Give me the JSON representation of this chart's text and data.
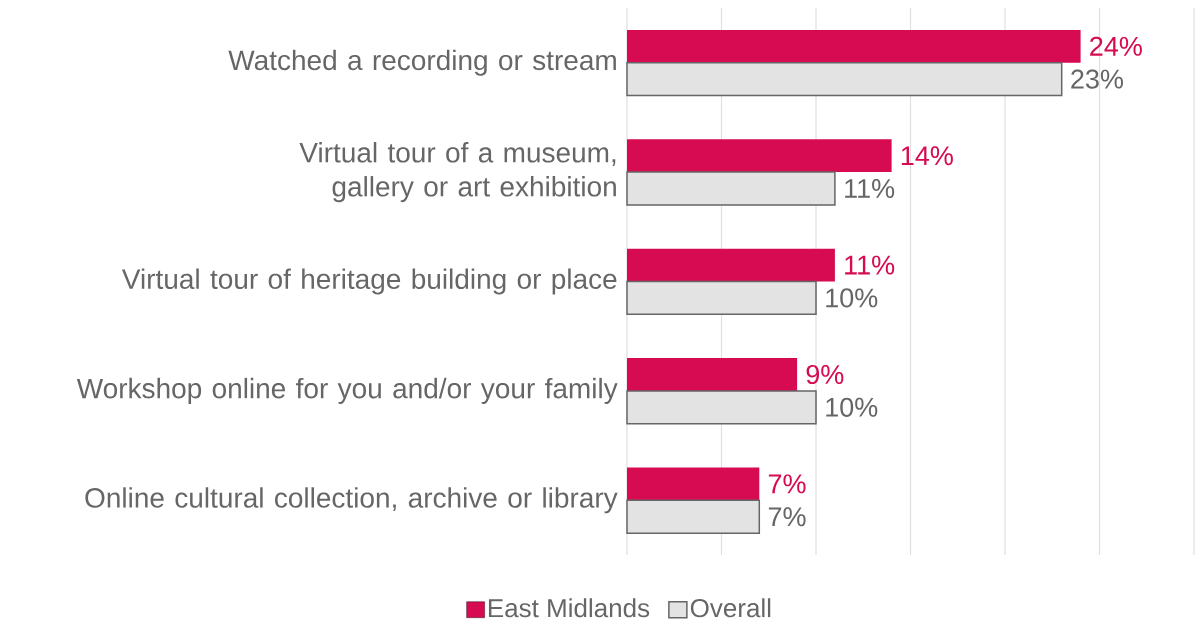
{
  "chart_data": {
    "type": "bar",
    "orientation": "horizontal",
    "categories": [
      "Watched a recording or stream",
      "Virtual tour of a museum, gallery or art exhibition",
      "Virtual tour of heritage building or place",
      "Workshop online for you and/or your family",
      "Online cultural collection, archive or library"
    ],
    "series": [
      {
        "name": "East Midlands",
        "color": "#d60b52",
        "values": [
          24,
          14,
          11,
          9,
          7
        ],
        "value_labels": [
          "24%",
          "14%",
          "11%",
          "9%",
          "7%"
        ]
      },
      {
        "name": "Overall",
        "color": "#e3e3e3",
        "values": [
          23,
          11,
          10,
          10,
          7
        ],
        "value_labels": [
          "23%",
          "11%",
          "10%",
          "10%",
          "7%"
        ]
      }
    ],
    "xlim": [
      0,
      30
    ],
    "xticks": [
      {
        "value": 0,
        "label": null
      },
      {
        "value": 5,
        "label": null
      },
      {
        "value": 10,
        "label": null
      },
      {
        "value": 15,
        "label": null
      },
      {
        "value": 20,
        "label": null
      },
      {
        "value": 25,
        "label": null
      },
      {
        "value": 30,
        "label": null
      }
    ],
    "grid": "x",
    "tick_labels": "y",
    "legend": "bottom"
  }
}
